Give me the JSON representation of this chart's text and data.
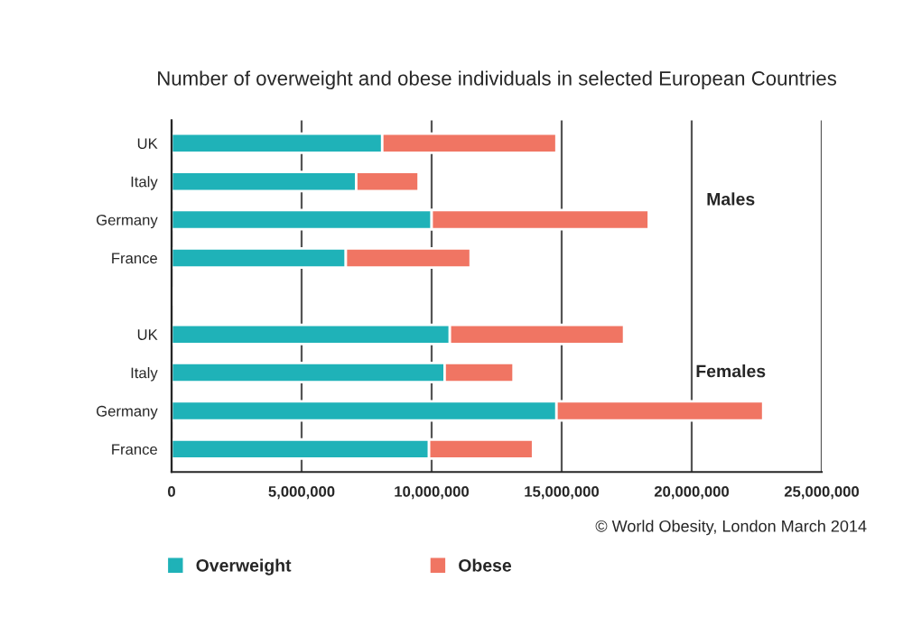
{
  "chart_data": {
    "type": "bar",
    "orientation": "horizontal",
    "stacked": true,
    "title": "Number of overweight and obese individuals in selected European Countries",
    "categories": [
      "UK",
      "Italy",
      "Germany",
      "France",
      null,
      "UK",
      "Italy",
      "Germany",
      "France"
    ],
    "series": [
      {
        "name": "Overweight",
        "color": "#1fb2b8",
        "values": [
          8100000,
          7100000,
          10000000,
          6700000,
          null,
          10700000,
          10500000,
          14800000,
          9900000
        ]
      },
      {
        "name": "Obese",
        "color": "#f07563",
        "values": [
          6700000,
          2400000,
          8350000,
          4800000,
          null,
          6700000,
          2650000,
          7950000,
          4000000
        ]
      }
    ],
    "xlim": [
      0,
      25000000
    ],
    "xticks": [
      {
        "value": 0,
        "label": "0"
      },
      {
        "value": 5000000,
        "label": "5,000,000"
      },
      {
        "value": 10000000,
        "label": "10,000,000"
      },
      {
        "value": 15000000,
        "label": "15,000,000"
      },
      {
        "value": 20000000,
        "label": "20,000,000"
      },
      {
        "value": 25000000,
        "label": "25,000,000"
      }
    ],
    "grid": "x",
    "legend": "bottom",
    "annotations": [
      "Males",
      "Females",
      "© World Obesity, London March 2014"
    ]
  }
}
